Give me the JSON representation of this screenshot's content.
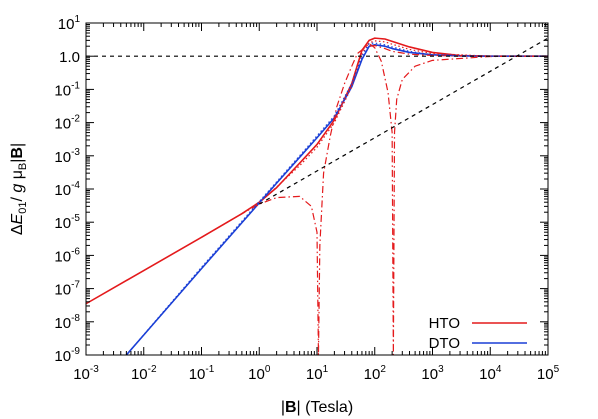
{
  "chart_data": {
    "type": "line",
    "x_scale": "log",
    "y_scale": "log",
    "xlim": [
      0.001,
      100000
    ],
    "ylim": [
      1e-09,
      10
    ],
    "x_ticks": [
      {
        "value": 0.001,
        "base": "10",
        "exp": "-3"
      },
      {
        "value": 0.01,
        "base": "10",
        "exp": "-2"
      },
      {
        "value": 0.1,
        "base": "10",
        "exp": "-1"
      },
      {
        "value": 1,
        "base": "10",
        "exp": "0"
      },
      {
        "value": 10,
        "base": "10",
        "exp": "1"
      },
      {
        "value": 100,
        "base": "10",
        "exp": "2"
      },
      {
        "value": 1000,
        "base": "10",
        "exp": "3"
      },
      {
        "value": 10000,
        "base": "10",
        "exp": "4"
      },
      {
        "value": 100000,
        "base": "10",
        "exp": "5"
      }
    ],
    "y_ticks": [
      {
        "value": 10,
        "base": "10",
        "exp": "1"
      },
      {
        "value": 1,
        "base": "1.0",
        "exp": ""
      },
      {
        "value": 0.1,
        "base": "10",
        "exp": "-1"
      },
      {
        "value": 0.01,
        "base": "10",
        "exp": "-2"
      },
      {
        "value": 0.001,
        "base": "10",
        "exp": "-3"
      },
      {
        "value": 0.0001,
        "base": "10",
        "exp": "-4"
      },
      {
        "value": 1e-05,
        "base": "10",
        "exp": "-5"
      },
      {
        "value": 1e-06,
        "base": "10",
        "exp": "-6"
      },
      {
        "value": 1e-07,
        "base": "10",
        "exp": "-7"
      },
      {
        "value": 1e-08,
        "base": "10",
        "exp": "-8"
      },
      {
        "value": 1e-09,
        "base": "10",
        "exp": "-9"
      }
    ],
    "xlabel": "|B| (Tesla)",
    "ylabel": "ΔE01/ g μB|B|",
    "legend_position": "bottom-right",
    "grid": false,
    "series": [
      {
        "name": "HTO",
        "color": "#e41a1c",
        "dash": "solid",
        "x": [
          0.001,
          0.01,
          0.1,
          0.5,
          1,
          2,
          5,
          10,
          20,
          40,
          60,
          80,
          100,
          150,
          200,
          400,
          1000,
          3000,
          10000,
          100000
        ],
        "y": [
          3.5e-08,
          3.5e-07,
          3.5e-06,
          1.8e-05,
          4e-05,
          0.00011,
          0.0006,
          0.0022,
          0.012,
          0.15,
          1.5,
          3.0,
          3.5,
          3.3,
          2.8,
          1.9,
          1.3,
          1.05,
          1.0,
          1.0
        ]
      },
      {
        "name": "DTO",
        "color": "#1a3fd6",
        "dash": "solid",
        "x": [
          0.005,
          0.01,
          0.1,
          1,
          2,
          5,
          10,
          20,
          40,
          60,
          80,
          100,
          150,
          200,
          400,
          1000,
          3000,
          10000,
          100000
        ],
        "y": [
          1e-09,
          4e-09,
          4e-07,
          3.8e-05,
          0.00015,
          0.0009,
          0.0035,
          0.014,
          0.12,
          0.8,
          2.0,
          2.2,
          2.0,
          1.7,
          1.3,
          1.1,
          1.02,
          1.0,
          1.0
        ]
      },
      {
        "color": "#e41a1c",
        "dash": "dashdot",
        "x": [
          0.1,
          0.5,
          1,
          2,
          5,
          8,
          10,
          10.6,
          11.2,
          13,
          17,
          22,
          30,
          40,
          50,
          70,
          100,
          150,
          200,
          400,
          1000,
          10000,
          100000
        ],
        "y": [
          3.5e-06,
          1.8e-05,
          3.5e-05,
          5.5e-05,
          6e-05,
          3e-05,
          5e-06,
          1e-09,
          2e-06,
          0.0003,
          0.004,
          0.03,
          0.15,
          0.5,
          1.2,
          1.9,
          2.1,
          1.7,
          1.4,
          1.15,
          1.05,
          1.0,
          1.0
        ]
      },
      {
        "color": "#e41a1c",
        "dash": "dashdot",
        "x": [
          10,
          20,
          40,
          60,
          80,
          100,
          130,
          170,
          200,
          210,
          220,
          240,
          300,
          500,
          1000,
          10000,
          100000
        ],
        "y": [
          0.0022,
          0.012,
          0.15,
          1.5,
          2.4,
          1.8,
          0.7,
          0.08,
          0.005,
          1e-09,
          0.005,
          0.05,
          0.2,
          0.5,
          0.75,
          0.98,
          1.0
        ]
      },
      {
        "color": "#e41a1c",
        "dash": "dot",
        "x": [
          1,
          5,
          10,
          20,
          40,
          60,
          80,
          100,
          150,
          200,
          400,
          1000,
          10000,
          100000
        ],
        "y": [
          3.8e-05,
          0.0005,
          0.0018,
          0.01,
          0.12,
          1.2,
          2.5,
          2.9,
          2.7,
          2.3,
          1.6,
          1.2,
          1.0,
          1.0
        ]
      },
      {
        "color": "#1a3fd6",
        "dash": "dot",
        "x": [
          0.005,
          0.1,
          1,
          5,
          10,
          20,
          40,
          60,
          80,
          100,
          150,
          200,
          400,
          1000,
          10000,
          100000
        ],
        "y": [
          1e-09,
          4.4e-07,
          4.2e-05,
          0.001,
          0.004,
          0.016,
          0.15,
          1.0,
          2.4,
          2.5,
          2.2,
          1.9,
          1.4,
          1.1,
          1.0,
          1.0
        ]
      },
      {
        "color": "#000000",
        "dash": "dash",
        "x": [
          0.001,
          100000
        ],
        "y": [
          1,
          1
        ]
      },
      {
        "color": "#000000",
        "dash": "dash",
        "x": [
          1,
          100000
        ],
        "y": [
          3.5e-05,
          3.5
        ]
      }
    ]
  }
}
